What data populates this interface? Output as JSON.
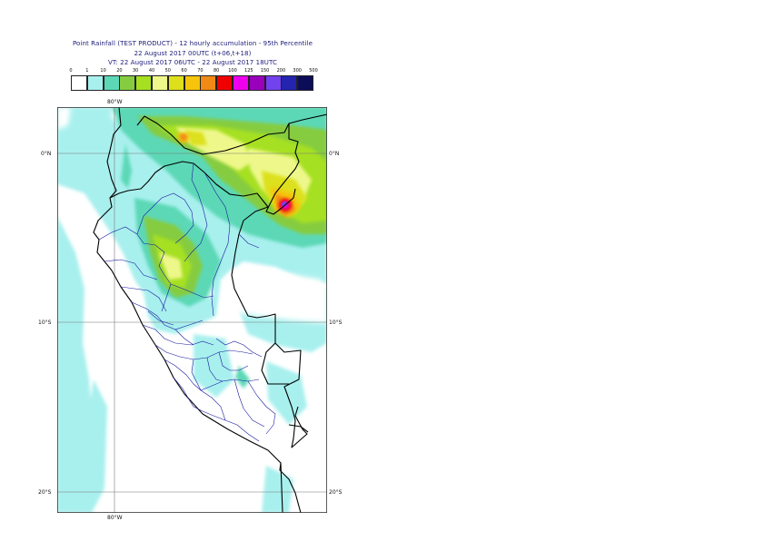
{
  "title": {
    "line1": "Point Rainfall (TEST PRODUCT) - 12 hourly accumulation - 95th Percentile",
    "line2": "22 August 2017 00UTC (t+06,t+18)",
    "line3": "VT: 22 August 2017 06UTC - 22 August 2017 18UTC"
  },
  "legend": {
    "thresholds": [
      "0",
      "1",
      "10",
      "20",
      "30",
      "40",
      "50",
      "60",
      "70",
      "80",
      "100",
      "125",
      "150",
      "200",
      "300",
      "500"
    ],
    "colors": [
      "#ffffff",
      "#a8f0ee",
      "#5cd8b6",
      "#86cc40",
      "#a6e020",
      "#eef88a",
      "#dde01a",
      "#f6c40a",
      "#f08a14",
      "#f00000",
      "#ee00ee",
      "#9a00bc",
      "#7242ee",
      "#2424b0",
      "#0c0c58"
    ]
  },
  "axes": {
    "lon_top": "80°W",
    "lon_bottom": "80°W",
    "lat_left": [
      "0°N",
      "10°S",
      "20°S"
    ],
    "lat_right": [
      "0°N",
      "10°S",
      "20°S"
    ]
  }
}
